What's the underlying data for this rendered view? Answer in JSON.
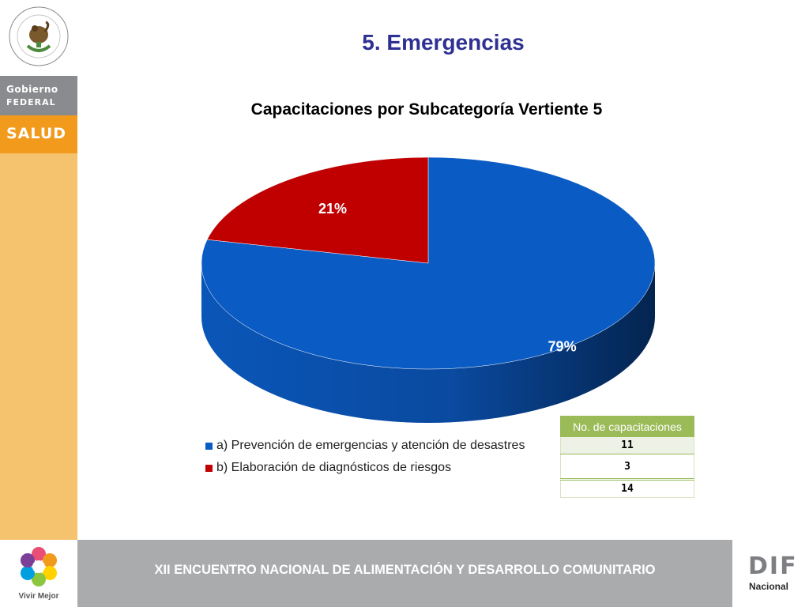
{
  "sidebar": {
    "seal_alt": "Estados Unidos Mexicanos",
    "gob_line1": "Gobierno",
    "gob_line2": "FEDERAL",
    "salud": "SALUD",
    "vivir_mejor": "Vivir Mejor"
  },
  "header": {
    "title": "5. Emergencias"
  },
  "footer": {
    "text": "XII ENCUENTRO NACIONAL DE ALIMENTACIÓN Y DESARROLLO COMUNITARIO",
    "dif": "DIF",
    "dif_sub": "Nacional"
  },
  "colors": {
    "blue": "#0a5bc4",
    "red": "#c00000",
    "title_navy": "#2e3192",
    "table_green": "#9bbb59"
  },
  "chart_data": {
    "type": "pie",
    "title": "Capacitaciones por Subcategoría Vertiente 5",
    "categories": [
      "a) Prevención de emergencias y atención de desastres",
      "b) Elaboración de diagnósticos de riesgos"
    ],
    "values": [
      11,
      3
    ],
    "data_labels": [
      "79%",
      "21%"
    ],
    "legend_position": "bottom-left",
    "style": "3d"
  },
  "table": {
    "header": "No. de capacitaciones",
    "rows": [
      "11",
      "3",
      "14"
    ]
  }
}
